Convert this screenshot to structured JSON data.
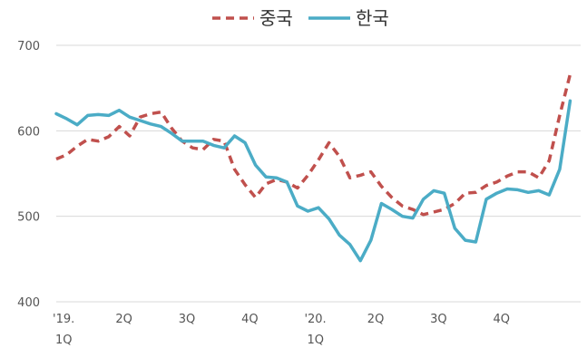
{
  "chart_data": {
    "type": "line",
    "title": "",
    "xlabel": "",
    "ylabel": "",
    "ylim": [
      400,
      700
    ],
    "yticks": [
      400,
      500,
      600,
      700
    ],
    "grid": true,
    "legend_position": "top-center",
    "x_tick_labels": [
      {
        "line1": "'19.",
        "line2": "1Q"
      },
      {
        "line1": "2Q",
        "line2": ""
      },
      {
        "line1": "3Q",
        "line2": ""
      },
      {
        "line1": "4Q",
        "line2": ""
      },
      {
        "line1": "'20.",
        "line2": "1Q"
      },
      {
        "line1": "2Q",
        "line2": ""
      },
      {
        "line1": "3Q",
        "line2": ""
      },
      {
        "line1": "4Q",
        "line2": ""
      }
    ],
    "x_ticks": [
      0,
      6,
      12,
      18,
      24,
      30,
      36,
      42
    ],
    "xlim": [
      0,
      50
    ],
    "series": [
      {
        "name": "중국",
        "color": "#c0504d",
        "style": "dashed",
        "x": [
          0,
          1,
          2,
          3,
          4,
          5,
          6,
          7,
          8,
          9,
          10,
          11,
          12,
          13,
          14,
          15,
          16,
          17,
          18,
          19,
          20,
          21,
          22,
          23,
          24,
          25,
          26,
          27,
          28,
          29,
          30,
          31,
          32,
          33,
          34,
          35,
          36,
          37,
          38,
          39,
          40,
          41,
          42,
          43,
          44,
          45,
          46,
          47,
          48,
          49
        ],
        "values": [
          567,
          572,
          582,
          590,
          588,
          593,
          605,
          594,
          616,
          620,
          622,
          603,
          588,
          580,
          578,
          590,
          588,
          555,
          537,
          522,
          538,
          543,
          540,
          533,
          548,
          566,
          586,
          570,
          545,
          548,
          552,
          535,
          522,
          512,
          508,
          502,
          505,
          508,
          515,
          527,
          528,
          536,
          540,
          547,
          552,
          552,
          545,
          565,
          618,
          666
        ]
      },
      {
        "name": "한국",
        "color": "#4bacc6",
        "style": "solid",
        "x": [
          0,
          1,
          2,
          3,
          4,
          5,
          6,
          7,
          8,
          9,
          10,
          11,
          12,
          13,
          14,
          15,
          16,
          17,
          18,
          19,
          20,
          21,
          22,
          23,
          24,
          25,
          26,
          27,
          28,
          29,
          30,
          31,
          32,
          33,
          34,
          35,
          36,
          37,
          38,
          39,
          40,
          41,
          42,
          43,
          44,
          45,
          46,
          47,
          48,
          49
        ],
        "values": [
          620,
          614,
          607,
          618,
          619,
          618,
          624,
          616,
          612,
          608,
          605,
          597,
          588,
          588,
          588,
          583,
          580,
          594,
          586,
          560,
          546,
          545,
          540,
          512,
          506,
          510,
          497,
          478,
          467,
          448,
          472,
          515,
          508,
          500,
          498,
          520,
          530,
          527,
          486,
          472,
          470,
          520,
          527,
          532,
          531,
          528,
          530,
          525,
          555,
          635
        ]
      }
    ]
  }
}
